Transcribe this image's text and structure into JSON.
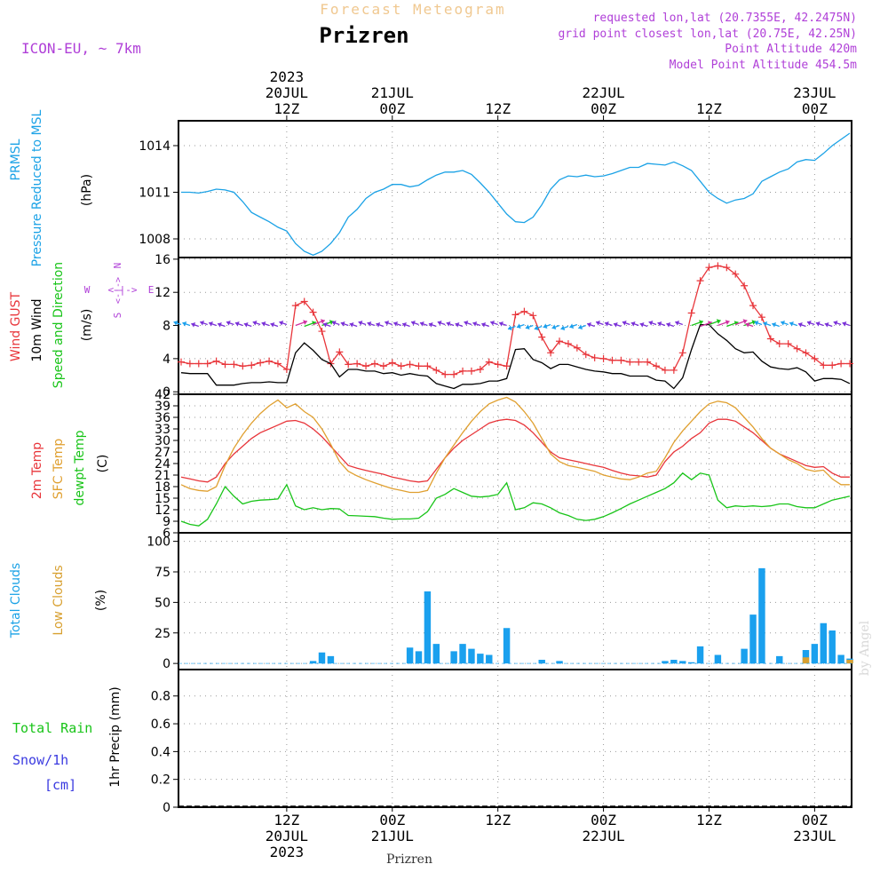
{
  "header": {
    "forecast_label": "Forecast Meteogram",
    "city": "Prizren",
    "model": "ICON-EU, ~ 7km",
    "requested": "requested lon,lat (20.7355E, 42.2475N)",
    "gridpoint": "grid point closest lon,lat (20.75E, 42.25N)",
    "point_alt": "Point Altitude 420m",
    "model_alt": "Model Point Altitude 454.5m",
    "footer_city": "Prizren",
    "watermark": "by Angel"
  },
  "time_axis": {
    "hours": [
      12,
      24,
      36,
      48,
      60,
      72
    ],
    "top_labels": [
      {
        "h": 12,
        "lines": [
          "2023",
          "20JUL",
          "12Z"
        ]
      },
      {
        "h": 24,
        "lines": [
          "21JUL",
          "00Z"
        ]
      },
      {
        "h": 36,
        "lines": [
          "12Z"
        ]
      },
      {
        "h": 48,
        "lines": [
          "22JUL",
          "00Z"
        ]
      },
      {
        "h": 60,
        "lines": [
          "12Z"
        ]
      },
      {
        "h": 72,
        "lines": [
          "23JUL",
          "00Z"
        ]
      }
    ],
    "bottom_labels": [
      {
        "h": 12,
        "lines": [
          "12Z",
          "20JUL",
          "2023"
        ]
      },
      {
        "h": 24,
        "lines": [
          "00Z",
          "21JUL"
        ]
      },
      {
        "h": 36,
        "lines": [
          "12Z"
        ]
      },
      {
        "h": 48,
        "lines": [
          "00Z",
          "22JUL"
        ]
      },
      {
        "h": 60,
        "lines": [
          "12Z"
        ]
      },
      {
        "h": 72,
        "lines": [
          "00Z",
          "23JUL"
        ]
      }
    ]
  },
  "panel_labels": {
    "pressure": {
      "name": "PRMSL",
      "desc": "Pressure Reduced to MSL",
      "unit": "(hPa)"
    },
    "wind": {
      "gust": "Wind GUST",
      "wind10": "10m Wind",
      "dir": "Speed and Direction",
      "unit": "(m/s)",
      "compass": {
        "n": "N",
        "s": "S",
        "w": "W",
        "e": "E",
        "arrow": "<-|->"
      }
    },
    "temp": {
      "t2m": "2m Temp",
      "sfc": "SFC Temp",
      "dew": "dewpt Temp",
      "unit": "(C)"
    },
    "clouds": {
      "total": "Total Clouds",
      "low": "Low Clouds",
      "unit": "(%)"
    },
    "precip": {
      "rain": "Total  Rain",
      "snow": "Snow/1h",
      "snow_unit": "[cm]",
      "label": "1hr Precip (mm)"
    }
  },
  "colors": {
    "pressure": "#1ba2e6",
    "gust": "#e8353a",
    "wind": "#000000",
    "t2m": "#e8353a",
    "sfc": "#e0a030",
    "dew": "#18c418",
    "total_clouds": "#1aa0ee",
    "low_clouds": "#d8a030",
    "rain": "#18c418",
    "snow": "#3a3ae0",
    "header_orange": "#f0c890",
    "header_purple": "#b040d8"
  },
  "chart_data": [
    {
      "type": "line",
      "title": "PRMSL Pressure Reduced to MSL",
      "ylabel": "(hPa)",
      "ylim": [
        1006.8,
        1015.6
      ],
      "yticks": [
        1008,
        1011,
        1014
      ],
      "x_hours": [
        0,
        1,
        2,
        3,
        4,
        5,
        6,
        7,
        8,
        9,
        10,
        11,
        12,
        13,
        14,
        15,
        16,
        17,
        18,
        19,
        20,
        21,
        22,
        23,
        24,
        25,
        26,
        27,
        28,
        29,
        30,
        31,
        32,
        33,
        34,
        35,
        36,
        37,
        38,
        39,
        40,
        41,
        42,
        43,
        44,
        45,
        46,
        47,
        48,
        49,
        50,
        51,
        52,
        53,
        54,
        55,
        56,
        57,
        58,
        59,
        60,
        61,
        62,
        63,
        64,
        65,
        66,
        67,
        68,
        69,
        70,
        71,
        72,
        73,
        74,
        75,
        76
      ],
      "series": [
        {
          "name": "PRMSL",
          "values": [
            1011,
            1011,
            1010.95,
            1011.05,
            1011.2,
            1011.15,
            1011.0,
            1010.4,
            1009.7,
            1009.4,
            1009.1,
            1008.75,
            1008.5,
            1007.7,
            1007.2,
            1006.95,
            1007.2,
            1007.7,
            1008.4,
            1009.4,
            1009.9,
            1010.6,
            1011.0,
            1011.2,
            1011.5,
            1011.5,
            1011.35,
            1011.45,
            1011.8,
            1012.1,
            1012.3,
            1012.3,
            1012.4,
            1012.15,
            1011.6,
            1011.0,
            1010.3,
            1009.6,
            1009.1,
            1009.05,
            1009.4,
            1010.2,
            1011.2,
            1011.8,
            1012.05,
            1012.0,
            1012.1,
            1012.0,
            1012.05,
            1012.2,
            1012.4,
            1012.6,
            1012.6,
            1012.85,
            1012.8,
            1012.75,
            1012.95,
            1012.7,
            1012.4,
            1011.7,
            1011.0,
            1010.6,
            1010.3,
            1010.5,
            1010.6,
            1010.9,
            1011.7,
            1012.0,
            1012.3,
            1012.5,
            1012.95,
            1013.1,
            1013.05,
            1013.5,
            1014.0,
            1014.4,
            1014.8
          ]
        }
      ]
    },
    {
      "type": "line",
      "title": "Wind GUST / 10m Wind Speed and Direction",
      "ylabel": "(m/s)",
      "ylim": [
        -0.3,
        16.2
      ],
      "yticks": [
        0,
        4,
        8,
        12,
        16
      ],
      "x_hours": [
        0,
        1,
        2,
        3,
        4,
        5,
        6,
        7,
        8,
        9,
        10,
        11,
        12,
        13,
        14,
        15,
        16,
        17,
        18,
        19,
        20,
        21,
        22,
        23,
        24,
        25,
        26,
        27,
        28,
        29,
        30,
        31,
        32,
        33,
        34,
        35,
        36,
        37,
        38,
        39,
        40,
        41,
        42,
        43,
        44,
        45,
        46,
        47,
        48,
        49,
        50,
        51,
        52,
        53,
        54,
        55,
        56,
        57,
        58,
        59,
        60,
        61,
        62,
        63,
        64,
        65,
        66,
        67,
        68,
        69,
        70,
        71,
        72,
        73,
        74,
        75,
        76
      ],
      "series": [
        {
          "name": "Wind GUST",
          "values": [
            3.6,
            3.4,
            3.4,
            3.4,
            3.7,
            3.3,
            3.3,
            3.1,
            3.2,
            3.5,
            3.7,
            3.4,
            2.7,
            10.4,
            10.9,
            9.6,
            7.3,
            3.4,
            4.8,
            3.3,
            3.4,
            3.1,
            3.4,
            3.1,
            3.5,
            3.1,
            3.3,
            3.1,
            3.1,
            2.6,
            2.1,
            2.1,
            2.5,
            2.5,
            2.7,
            3.6,
            3.3,
            3.1,
            9.3,
            9.7,
            9.2,
            6.6,
            4.7,
            6.1,
            5.8,
            5.3,
            4.5,
            4.1,
            4.0,
            3.8,
            3.8,
            3.6,
            3.6,
            3.6,
            3.1,
            2.6,
            2.6,
            4.7,
            9.5,
            13.4,
            15.0,
            15.2,
            15.0,
            14.2,
            12.8,
            10.4,
            9.0,
            6.4,
            5.8,
            5.8,
            5.2,
            4.7,
            4.0,
            3.2,
            3.2,
            3.4,
            3.4
          ]
        },
        {
          "name": "10m Wind",
          "values": [
            2.3,
            2.2,
            2.2,
            2.2,
            0.8,
            0.8,
            0.8,
            1.0,
            1.1,
            1.1,
            1.2,
            1.1,
            1.1,
            4.7,
            5.9,
            5.0,
            3.9,
            3.4,
            1.8,
            2.7,
            2.7,
            2.5,
            2.5,
            2.2,
            2.3,
            2.0,
            2.2,
            2.0,
            1.9,
            1.0,
            0.7,
            0.4,
            0.9,
            0.9,
            1.0,
            1.3,
            1.3,
            1.6,
            5.1,
            5.2,
            3.9,
            3.5,
            2.8,
            3.3,
            3.3,
            3.0,
            2.7,
            2.5,
            2.4,
            2.2,
            2.2,
            1.9,
            1.9,
            1.9,
            1.4,
            1.3,
            0.4,
            1.7,
            5.1,
            8.1,
            8.1,
            7.0,
            6.2,
            5.2,
            4.7,
            4.8,
            3.7,
            3.0,
            2.8,
            2.7,
            2.9,
            2.4,
            1.3,
            1.6,
            1.6,
            1.5,
            1.0
          ]
        }
      ]
    },
    {
      "type": "line",
      "title": "2m Temp / SFC Temp / dewpt Temp",
      "ylabel": "(C)",
      "ylim": [
        6,
        42
      ],
      "yticks": [
        6,
        9,
        12,
        15,
        18,
        21,
        24,
        27,
        30,
        33,
        36,
        39,
        42
      ],
      "x_hours": [
        0,
        1,
        2,
        3,
        4,
        5,
        6,
        7,
        8,
        9,
        10,
        11,
        12,
        13,
        14,
        15,
        16,
        17,
        18,
        19,
        20,
        21,
        22,
        23,
        24,
        25,
        26,
        27,
        28,
        29,
        30,
        31,
        32,
        33,
        34,
        35,
        36,
        37,
        38,
        39,
        40,
        41,
        42,
        43,
        44,
        45,
        46,
        47,
        48,
        49,
        50,
        51,
        52,
        53,
        54,
        55,
        56,
        57,
        58,
        59,
        60,
        61,
        62,
        63,
        64,
        65,
        66,
        67,
        68,
        69,
        70,
        71,
        72,
        73,
        74,
        75,
        76
      ],
      "series": [
        {
          "name": "2m Temp",
          "values": [
            20.5,
            20.0,
            19.5,
            19.2,
            20.5,
            24.0,
            26.5,
            28.5,
            30.5,
            32.0,
            33.0,
            34.0,
            35.0,
            35.2,
            34.5,
            33.0,
            31.0,
            28.5,
            26.0,
            23.5,
            22.8,
            22.2,
            21.7,
            21.2,
            20.5,
            20.0,
            19.5,
            19.2,
            19.5,
            22.5,
            25.5,
            28.0,
            30.0,
            31.5,
            33.0,
            34.5,
            35.2,
            35.5,
            35.2,
            34.0,
            32.0,
            29.5,
            27.0,
            25.5,
            25.0,
            24.5,
            24.0,
            23.5,
            23.0,
            22.2,
            21.5,
            21.0,
            20.8,
            20.5,
            21.0,
            24.5,
            27.0,
            28.5,
            30.5,
            32.0,
            34.5,
            35.5,
            35.5,
            35.0,
            33.5,
            32.0,
            30.0,
            28.0,
            26.5,
            25.5,
            24.5,
            23.5,
            23.0,
            23.2,
            21.5,
            20.5,
            20.5
          ]
        },
        {
          "name": "SFC Temp",
          "values": [
            18.5,
            17.5,
            17.0,
            16.8,
            18.0,
            23.5,
            28.0,
            31.5,
            34.5,
            37.0,
            39.0,
            40.5,
            38.5,
            39.5,
            37.5,
            36.0,
            33.0,
            29.0,
            24.5,
            22.0,
            20.8,
            19.8,
            19.0,
            18.2,
            17.5,
            17.0,
            16.5,
            16.5,
            17.0,
            21.5,
            25.5,
            28.8,
            32.0,
            35.0,
            37.5,
            39.5,
            40.5,
            41.2,
            40.0,
            37.5,
            34.5,
            30.5,
            26.5,
            24.5,
            23.5,
            23.0,
            22.5,
            22.0,
            21.0,
            20.5,
            20.0,
            19.8,
            20.5,
            21.5,
            22.0,
            25.5,
            29.5,
            32.5,
            35.0,
            37.5,
            39.5,
            40.2,
            39.8,
            38.5,
            36.0,
            33.5,
            30.5,
            28.0,
            26.5,
            25.0,
            24.0,
            22.5,
            22.0,
            22.3,
            20.0,
            18.5,
            18.5
          ]
        },
        {
          "name": "dewpt Temp",
          "values": [
            9.0,
            8.2,
            7.8,
            9.5,
            13.5,
            18.0,
            15.5,
            13.5,
            14.2,
            14.5,
            14.6,
            14.8,
            18.5,
            13.0,
            12.0,
            12.5,
            12.0,
            12.3,
            12.2,
            10.5,
            10.4,
            10.3,
            10.2,
            9.8,
            9.5,
            9.6,
            9.6,
            9.8,
            11.5,
            15.0,
            16.0,
            17.5,
            16.5,
            15.5,
            15.3,
            15.5,
            16.0,
            19.0,
            12.0,
            12.5,
            13.8,
            13.5,
            12.5,
            11.2,
            10.5,
            9.5,
            9.2,
            9.5,
            10.2,
            11.2,
            12.3,
            13.5,
            14.5,
            15.5,
            16.5,
            17.5,
            19.0,
            21.5,
            19.8,
            21.5,
            21.0,
            14.5,
            12.5,
            13.0,
            12.8,
            13.0,
            12.8,
            13.0,
            13.5,
            13.5,
            12.8,
            12.5,
            12.5,
            13.5,
            14.5,
            15.0,
            15.5
          ]
        }
      ]
    },
    {
      "type": "bar",
      "title": "Total Clouds / Low Clouds",
      "ylabel": "(%)",
      "ylim": [
        -5,
        107
      ],
      "yticks": [
        0,
        25,
        50,
        75,
        100
      ],
      "x_hours": [
        0,
        1,
        2,
        3,
        4,
        5,
        6,
        7,
        8,
        9,
        10,
        11,
        12,
        13,
        14,
        15,
        16,
        17,
        18,
        19,
        20,
        21,
        22,
        23,
        24,
        25,
        26,
        27,
        28,
        29,
        30,
        31,
        32,
        33,
        34,
        35,
        36,
        37,
        38,
        39,
        40,
        41,
        42,
        43,
        44,
        45,
        46,
        47,
        48,
        49,
        50,
        51,
        52,
        53,
        54,
        55,
        56,
        57,
        58,
        59,
        60,
        61,
        62,
        63,
        64,
        65,
        66,
        67,
        68,
        69,
        70,
        71,
        72,
        73,
        74,
        75,
        76
      ],
      "series": [
        {
          "name": "Total Clouds",
          "values": [
            0,
            0,
            0,
            0,
            0,
            0,
            0,
            0,
            0,
            0,
            0,
            0,
            0,
            0,
            0,
            2,
            9,
            6,
            0,
            0,
            0,
            0,
            0,
            0,
            0,
            0,
            13,
            10,
            59,
            16,
            0,
            10,
            16,
            12,
            8,
            7,
            0,
            29,
            0,
            0,
            0,
            3,
            0,
            2,
            0,
            0,
            0,
            0,
            0,
            0,
            0,
            0,
            0,
            0,
            0,
            2,
            3,
            2,
            1,
            14,
            0,
            7,
            0,
            0,
            12,
            40,
            78,
            0,
            6,
            0,
            0,
            11,
            16,
            33,
            27,
            7,
            4
          ]
        },
        {
          "name": "Low Clouds",
          "values": [
            0,
            0,
            0,
            0,
            0,
            0,
            0,
            0,
            0,
            0,
            0,
            0,
            0,
            0,
            0,
            0,
            0,
            0,
            0,
            0,
            0,
            0,
            0,
            0,
            0,
            0,
            0,
            0,
            0,
            0,
            0,
            0,
            0,
            0,
            0,
            0,
            0,
            0,
            0,
            0,
            0,
            0,
            0,
            0,
            0,
            0,
            0,
            0,
            0,
            0,
            0,
            0,
            0,
            0,
            0,
            0,
            0,
            0,
            0,
            0,
            0,
            0,
            0,
            0,
            0,
            0,
            0,
            0,
            0,
            0,
            0,
            5,
            0,
            0,
            0,
            0,
            3
          ]
        }
      ]
    },
    {
      "type": "bar",
      "title": "Total Rain / Snow 1h",
      "ylabel": "1hr Precip (mm)",
      "ylim": [
        0,
        0.99
      ],
      "yticks": [
        0,
        0.2,
        0.4,
        0.6,
        0.8
      ],
      "x_hours": [],
      "series": [
        {
          "name": "Total Rain",
          "values": []
        },
        {
          "name": "Snow/1h",
          "values": []
        }
      ]
    }
  ]
}
